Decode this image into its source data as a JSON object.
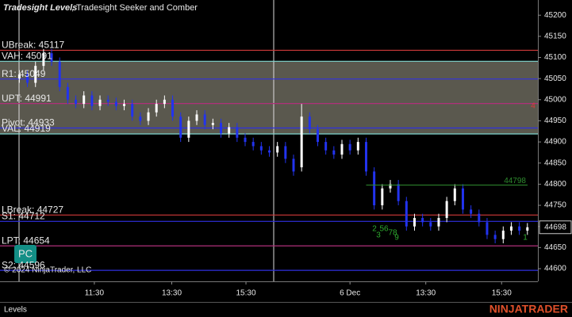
{
  "chart_data": {
    "type": "candlestick",
    "title": "Tradesight Levels",
    "subtitle": ", Tradesight Seeker and Comber",
    "copyright": "© 2024 NinjaTrader, LLC",
    "panel_label": "Levels",
    "brand": "NINJATRADER",
    "button": "PC",
    "ylim": [
      44570,
      45236
    ],
    "yticks": [
      45200,
      45150,
      45100,
      45050,
      45000,
      44950,
      44900,
      44850,
      44800,
      44750,
      44700,
      44650,
      44600
    ],
    "xlim": [
      -2.4,
      64.3
    ],
    "xticks": [
      {
        "value": 9.3,
        "label": "11:30"
      },
      {
        "value": 18.9,
        "label": "13:30"
      },
      {
        "value": 28.1,
        "label": "15:30"
      },
      {
        "value": 41,
        "label": "6 Dec"
      },
      {
        "value": 50.4,
        "label": "13:30"
      },
      {
        "value": 59.8,
        "label": "15:30"
      }
    ],
    "last_price": 44698,
    "up_color": "#ffffff",
    "down_color": "#2233ee",
    "open": [
      45050,
      45060,
      45040,
      45080,
      45110,
      45090,
      45030,
      45000,
      44990,
      45010,
      44985,
      45000,
      44995,
      44985,
      44990,
      44960,
      44950,
      44970,
      44990,
      45000,
      44960,
      44910,
      44950,
      44965,
      44940,
      44945,
      44920,
      44935,
      44910,
      44900,
      44890,
      44880,
      44875,
      44890,
      44860,
      44840,
      44960,
      44930,
      44900,
      44880,
      44870,
      44895,
      44880,
      44900,
      44830,
      44750,
      44790,
      44800,
      44760,
      44700,
      44720,
      44710,
      44700,
      44720,
      44760,
      44790,
      44740,
      44730,
      44710,
      44680,
      44670,
      44690,
      44700,
      44690
    ],
    "high": [
      45070,
      45070,
      45090,
      45120,
      45120,
      45100,
      45040,
      45010,
      45020,
      45020,
      45010,
      45010,
      45005,
      45000,
      45000,
      44970,
      44980,
      45000,
      45010,
      45010,
      44970,
      44960,
      44975,
      44975,
      44955,
      44955,
      44945,
      44945,
      44920,
      44910,
      44900,
      44890,
      44900,
      44900,
      44870,
      44990,
      44970,
      44940,
      44910,
      44890,
      44905,
      44905,
      44910,
      44910,
      44840,
      44800,
      44810,
      44810,
      44770,
      44730,
      44730,
      44720,
      44730,
      44770,
      44800,
      44800,
      44750,
      44740,
      44720,
      44690,
      44700,
      44710,
      44710,
      44708
    ],
    "low": [
      45040,
      45030,
      45030,
      45070,
      45080,
      45020,
      44990,
      44980,
      44980,
      44975,
      44975,
      44985,
      44975,
      44975,
      44950,
      44940,
      44940,
      44960,
      44980,
      44950,
      44900,
      44900,
      44940,
      44930,
      44930,
      44910,
      44910,
      44900,
      44890,
      44880,
      44870,
      44865,
      44865,
      44850,
      44820,
      44830,
      44920,
      44890,
      44870,
      44860,
      44860,
      44870,
      44870,
      44820,
      44740,
      44740,
      44780,
      44750,
      44690,
      44690,
      44700,
      44690,
      44690,
      44710,
      44750,
      44730,
      44720,
      44700,
      44670,
      44660,
      44660,
      44680,
      44680,
      44680
    ],
    "close": [
      45060,
      45040,
      45080,
      45110,
      45090,
      45030,
      45000,
      44990,
      45010,
      44985,
      45000,
      44995,
      44985,
      44990,
      44960,
      44950,
      44970,
      44990,
      45000,
      44960,
      44910,
      44950,
      44965,
      44940,
      44945,
      44920,
      44935,
      44910,
      44900,
      44890,
      44880,
      44875,
      44890,
      44860,
      44830,
      44960,
      44930,
      44900,
      44880,
      44870,
      44895,
      44880,
      44900,
      44830,
      44750,
      44790,
      44800,
      44760,
      44700,
      44720,
      44710,
      44700,
      44720,
      44760,
      44790,
      44740,
      44730,
      44710,
      44680,
      44670,
      44690,
      44700,
      44690,
      44698
    ],
    "levels": [
      {
        "label": "UBreak: 45117",
        "value": 45117,
        "color": "#d03a3a"
      },
      {
        "label": "VAH: 45091",
        "value": 45091,
        "color": "#7fd6d0"
      },
      {
        "label": "R1: 45049",
        "value": 45049,
        "color": "#3030e0"
      },
      {
        "label": "UPT: 44991",
        "value": 44991,
        "color": "#b0307a"
      },
      {
        "label": "Pivot: 44933",
        "value": 44933,
        "color": "#3030e0"
      },
      {
        "label": "VAL: 44919",
        "value": 44919,
        "color": "#7fd6d0"
      },
      {
        "label": "LBreak: 44727",
        "value": 44727,
        "color": "#d03a3a"
      },
      {
        "label": "S1: 44712",
        "value": 44712,
        "color": "#3030e0"
      },
      {
        "label": "LPT: 44654",
        "value": 44654,
        "color": "#b0307a"
      },
      {
        "label": "S2: 44596",
        "value": 44596,
        "color": "#3030e0"
      }
    ],
    "value_area": {
      "high": 45091,
      "low": 44919,
      "color": "#6a675c"
    },
    "target": {
      "label": "44798",
      "value": 44798,
      "color": "#2e8b2e"
    },
    "markers": [
      {
        "text": "4",
        "color": "#e03a3a"
      },
      {
        "text": "1",
        "color": "#2eaa2e"
      },
      {
        "text": "2",
        "color": "#2eaa2e"
      },
      {
        "text": "3",
        "color": "#2eaa2e"
      },
      {
        "text": "56",
        "color": "#2eaa2e"
      },
      {
        "text": "78",
        "color": "#2eaa2e"
      },
      {
        "text": "9",
        "color": "#2eaa2e"
      }
    ]
  }
}
